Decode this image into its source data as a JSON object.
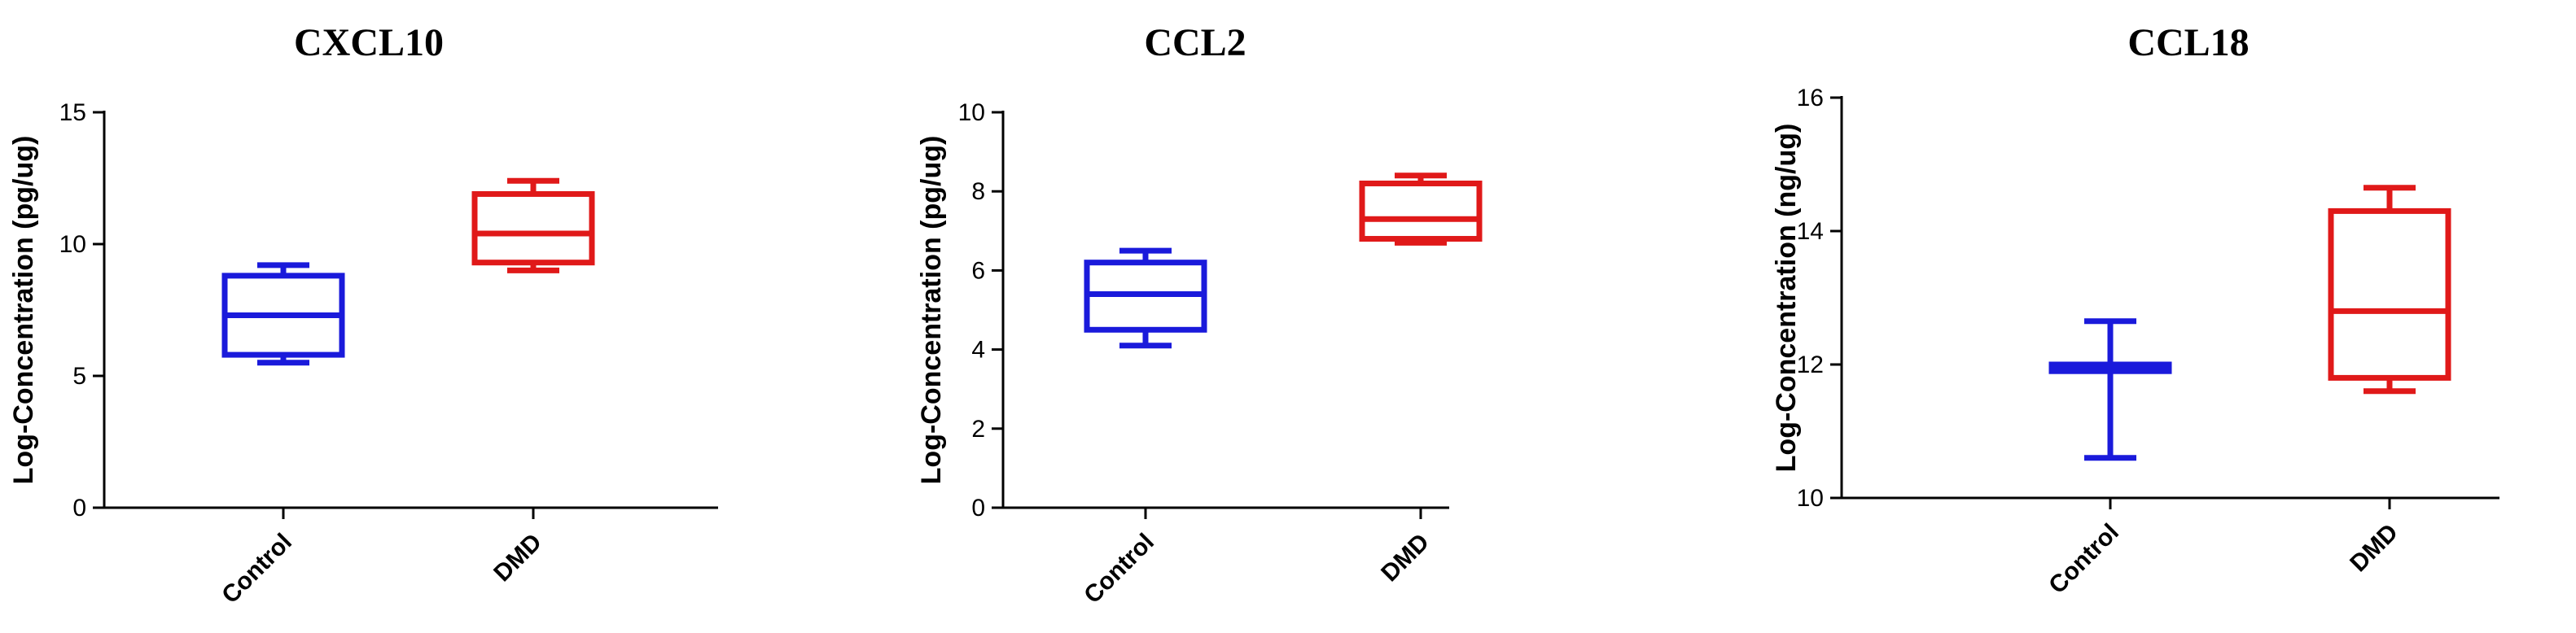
{
  "chart_data": [
    {
      "type": "box",
      "title": "CXCL10",
      "ylabel": "Log-Concentration (pg/ug)",
      "ylim": [
        0,
        15
      ],
      "yticks": [
        "0",
        "5",
        "10",
        "15"
      ],
      "categories": [
        "Control",
        "DMD"
      ],
      "boxes": [
        {
          "category": "Control",
          "color": "#1a1adb",
          "min": 5.5,
          "q1": 5.8,
          "median": 7.3,
          "q3": 8.8,
          "max": 9.2
        },
        {
          "category": "DMD",
          "color": "#e01919",
          "min": 9.0,
          "q1": 9.3,
          "median": 10.4,
          "q3": 11.9,
          "max": 12.4
        }
      ]
    },
    {
      "type": "box",
      "title": "CCL2",
      "ylabel": "Log-Concentration (pg/ug)",
      "ylim": [
        0,
        10
      ],
      "yticks": [
        "0",
        "2",
        "4",
        "6",
        "8",
        "10"
      ],
      "categories": [
        "Control",
        "DMD"
      ],
      "boxes": [
        {
          "category": "Control",
          "color": "#1a1adb",
          "min": 4.1,
          "q1": 4.5,
          "median": 5.4,
          "q3": 6.2,
          "max": 6.5
        },
        {
          "category": "DMD",
          "color": "#e01919",
          "min": 6.7,
          "q1": 6.8,
          "median": 7.3,
          "q3": 8.2,
          "max": 8.4
        }
      ]
    },
    {
      "type": "box",
      "title": "CCL18",
      "ylabel": "Log-Concentration (ng/ug)",
      "ylim": [
        10,
        16
      ],
      "yticks": [
        "10",
        "12",
        "14",
        "16"
      ],
      "categories": [
        "Control",
        "DMD"
      ],
      "boxes": [
        {
          "category": "Control",
          "color": "#1a1adb",
          "min": 10.6,
          "q1": 11.9,
          "median": 11.95,
          "q3": 12.0,
          "max": 12.65
        },
        {
          "category": "DMD",
          "color": "#e01919",
          "min": 11.6,
          "q1": 11.8,
          "median": 12.8,
          "q3": 14.3,
          "max": 14.65
        }
      ]
    }
  ]
}
